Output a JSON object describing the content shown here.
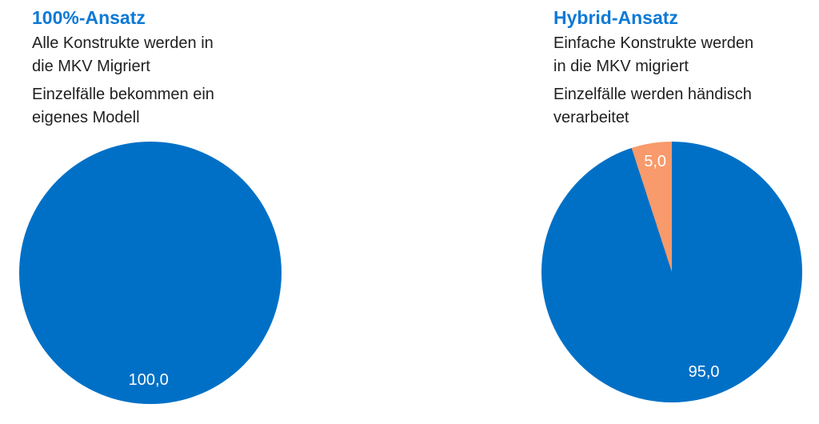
{
  "colors": {
    "background": "#ffffff",
    "title_blue": "#0d79d6",
    "body_text": "#212121",
    "pie_blue": "#0070c6",
    "pie_orange": "#f89a6b",
    "pie_label_text": "#ffffff"
  },
  "panels": [
    {
      "title": "100%-Ansatz",
      "paragraphs": [
        {
          "lines": [
            "Alle Konstrukte werden in",
            "die MKV Migriert"
          ]
        },
        {
          "lines": [
            "Einzelfälle bekommen ein",
            "eigenes Modell"
          ]
        }
      ]
    },
    {
      "title": "Hybrid-Ansatz",
      "paragraphs": [
        {
          "lines": [
            "Einfache Konstrukte werden",
            "in die MKV migriert"
          ]
        },
        {
          "lines": [
            "Einzelfälle werden händisch",
            "verarbeitet"
          ]
        }
      ]
    }
  ],
  "chart_data": [
    {
      "type": "pie",
      "title": "100%-Ansatz",
      "values": [
        100.0
      ],
      "value_labels": [
        "100,0"
      ],
      "colors": [
        "#0070c6"
      ],
      "start_angle_deg": 90,
      "direction": "clockwise",
      "legend": false,
      "label_pos_pct": [
        {
          "x": 49.3,
          "y": 91.0
        }
      ]
    },
    {
      "type": "pie",
      "title": "Hybrid-Ansatz",
      "values": [
        95.0,
        5.0
      ],
      "value_labels": [
        "95,0",
        "5,0"
      ],
      "colors": [
        "#0070c6",
        "#f89a6b"
      ],
      "start_angle_deg": 90,
      "direction": "clockwise",
      "legend": false,
      "label_pos_pct": [
        {
          "x": 62.3,
          "y": 88.3
        },
        {
          "x": 43.6,
          "y": 7.7
        }
      ]
    }
  ]
}
